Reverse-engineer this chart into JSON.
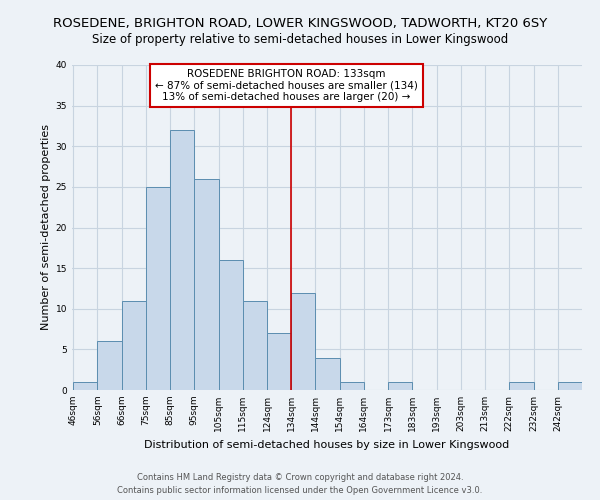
{
  "title": "ROSEDENE, BRIGHTON ROAD, LOWER KINGSWOOD, TADWORTH, KT20 6SY",
  "subtitle": "Size of property relative to semi-detached houses in Lower Kingswood",
  "xlabel": "Distribution of semi-detached houses by size in Lower Kingswood",
  "ylabel": "Number of semi-detached properties",
  "bin_labels": [
    "46sqm",
    "56sqm",
    "66sqm",
    "75sqm",
    "85sqm",
    "95sqm",
    "105sqm",
    "115sqm",
    "124sqm",
    "134sqm",
    "144sqm",
    "154sqm",
    "164sqm",
    "173sqm",
    "183sqm",
    "193sqm",
    "203sqm",
    "213sqm",
    "222sqm",
    "232sqm",
    "242sqm"
  ],
  "bar_values": [
    1,
    6,
    11,
    25,
    32,
    26,
    16,
    11,
    7,
    12,
    4,
    1,
    0,
    1,
    0,
    0,
    0,
    0,
    1,
    0,
    1
  ],
  "bar_color": "#c8d8ea",
  "bar_edge_color": "#5b8db0",
  "annotation_line_after_bar": 8,
  "annotation_line_color": "#cc0000",
  "annotation_box_text": "ROSEDENE BRIGHTON ROAD: 133sqm\n← 87% of semi-detached houses are smaller (134)\n13% of semi-detached houses are larger (20) →",
  "annotation_box_edge_color": "#cc0000",
  "ylim": [
    0,
    40
  ],
  "yticks": [
    0,
    5,
    10,
    15,
    20,
    25,
    30,
    35,
    40
  ],
  "footer_line1": "Contains HM Land Registry data © Crown copyright and database right 2024.",
  "footer_line2": "Contains public sector information licensed under the Open Government Licence v3.0.",
  "background_color": "#edf2f7",
  "grid_color": "#c8d4e0",
  "title_fontsize": 9.5,
  "subtitle_fontsize": 8.5,
  "xlabel_fontsize": 8,
  "ylabel_fontsize": 8,
  "tick_fontsize": 6.5,
  "footer_fontsize": 6,
  "annotation_fontsize": 7.5
}
